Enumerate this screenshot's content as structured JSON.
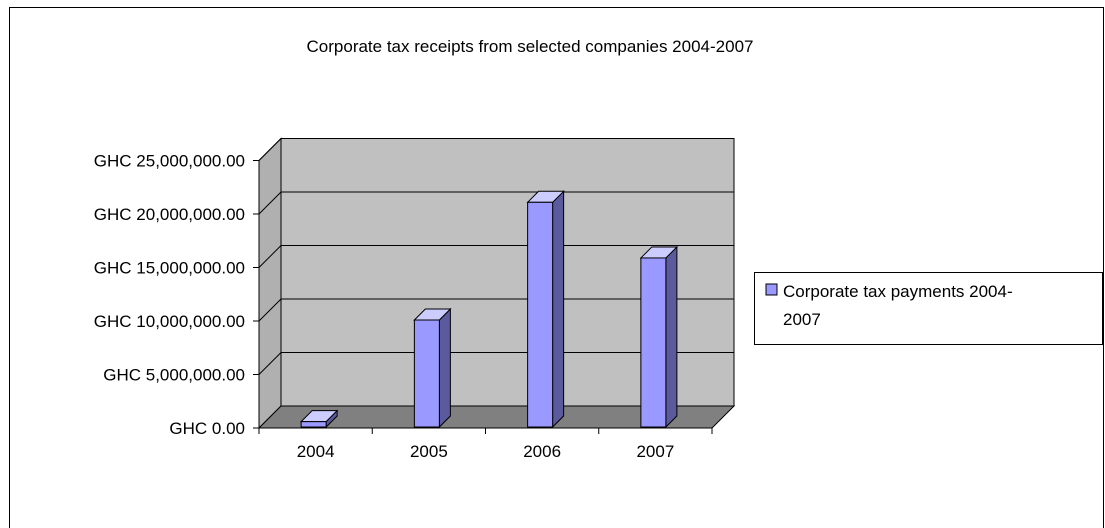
{
  "chart_data": {
    "type": "bar",
    "title": "Corporate tax receipts from selected companies 2004-2007",
    "categories": [
      "2004",
      "2005",
      "2006",
      "2007"
    ],
    "series": [
      {
        "name": "Corporate tax payments 2004-2007",
        "values": [
          500000,
          10000000,
          21000000,
          15800000
        ]
      }
    ],
    "ylim": [
      0,
      25000000
    ],
    "y_ticks": [
      {
        "value": 0,
        "label": "GHC 0.00"
      },
      {
        "value": 5000000,
        "label": "GHC 5,000,000.00"
      },
      {
        "value": 10000000,
        "label": "GHC 10,000,000.00"
      },
      {
        "value": 15000000,
        "label": "GHC 15,000,000.00"
      },
      {
        "value": 20000000,
        "label": "GHC 20,000,000.00"
      },
      {
        "value": 25000000,
        "label": "GHC 25,000,000.00"
      }
    ],
    "legend": {
      "placement": "right",
      "lines": [
        "Corporate tax payments 2004-",
        "2007"
      ]
    },
    "grid": true,
    "style": "3d-column",
    "colors": {
      "bar_front": "#9999ff",
      "bar_top": "#ccccff",
      "bar_side": "#5a5a9c",
      "wall": "#c0c0c0",
      "floor": "#808080",
      "side_wall": "#b0b0b0",
      "border": "#000000"
    }
  }
}
